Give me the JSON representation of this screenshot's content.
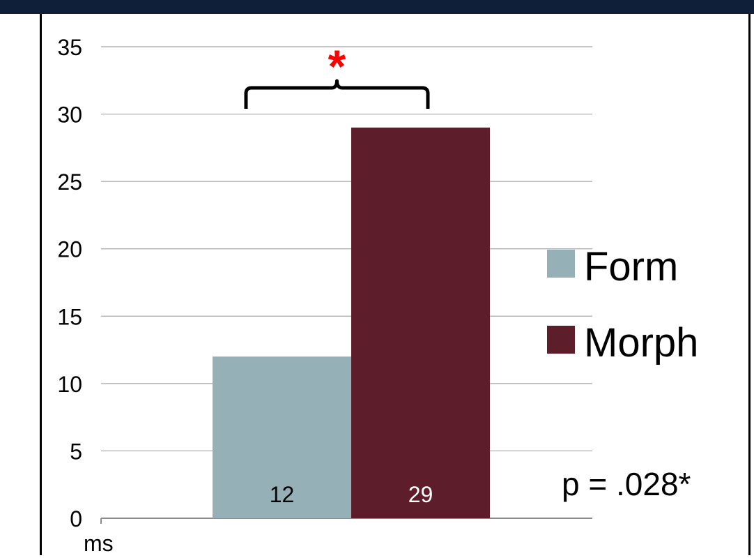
{
  "chart_data": {
    "type": "bar",
    "categories": [
      ""
    ],
    "series": [
      {
        "name": "Form",
        "values": [
          12
        ],
        "color": "#95b0b6"
      },
      {
        "name": "Morph",
        "values": [
          29
        ],
        "color": "#5d1d2a"
      }
    ],
    "data_labels": [
      "12",
      "29"
    ],
    "ylim": [
      0,
      35
    ],
    "yticks": [
      0,
      5,
      10,
      15,
      20,
      25,
      30,
      35
    ],
    "ylabel": "ms",
    "grid": true,
    "legend": "right",
    "annotations": {
      "significance_marker": "*",
      "p_value_text": "p = .028*"
    }
  },
  "colors": {
    "top_band": "#0f1f3a",
    "grid": "#a6a6a6",
    "axis": "#8c8c8c",
    "significance": "#ff0000",
    "form_label_text": "#000000",
    "morph_label_text": "#ffffff"
  }
}
